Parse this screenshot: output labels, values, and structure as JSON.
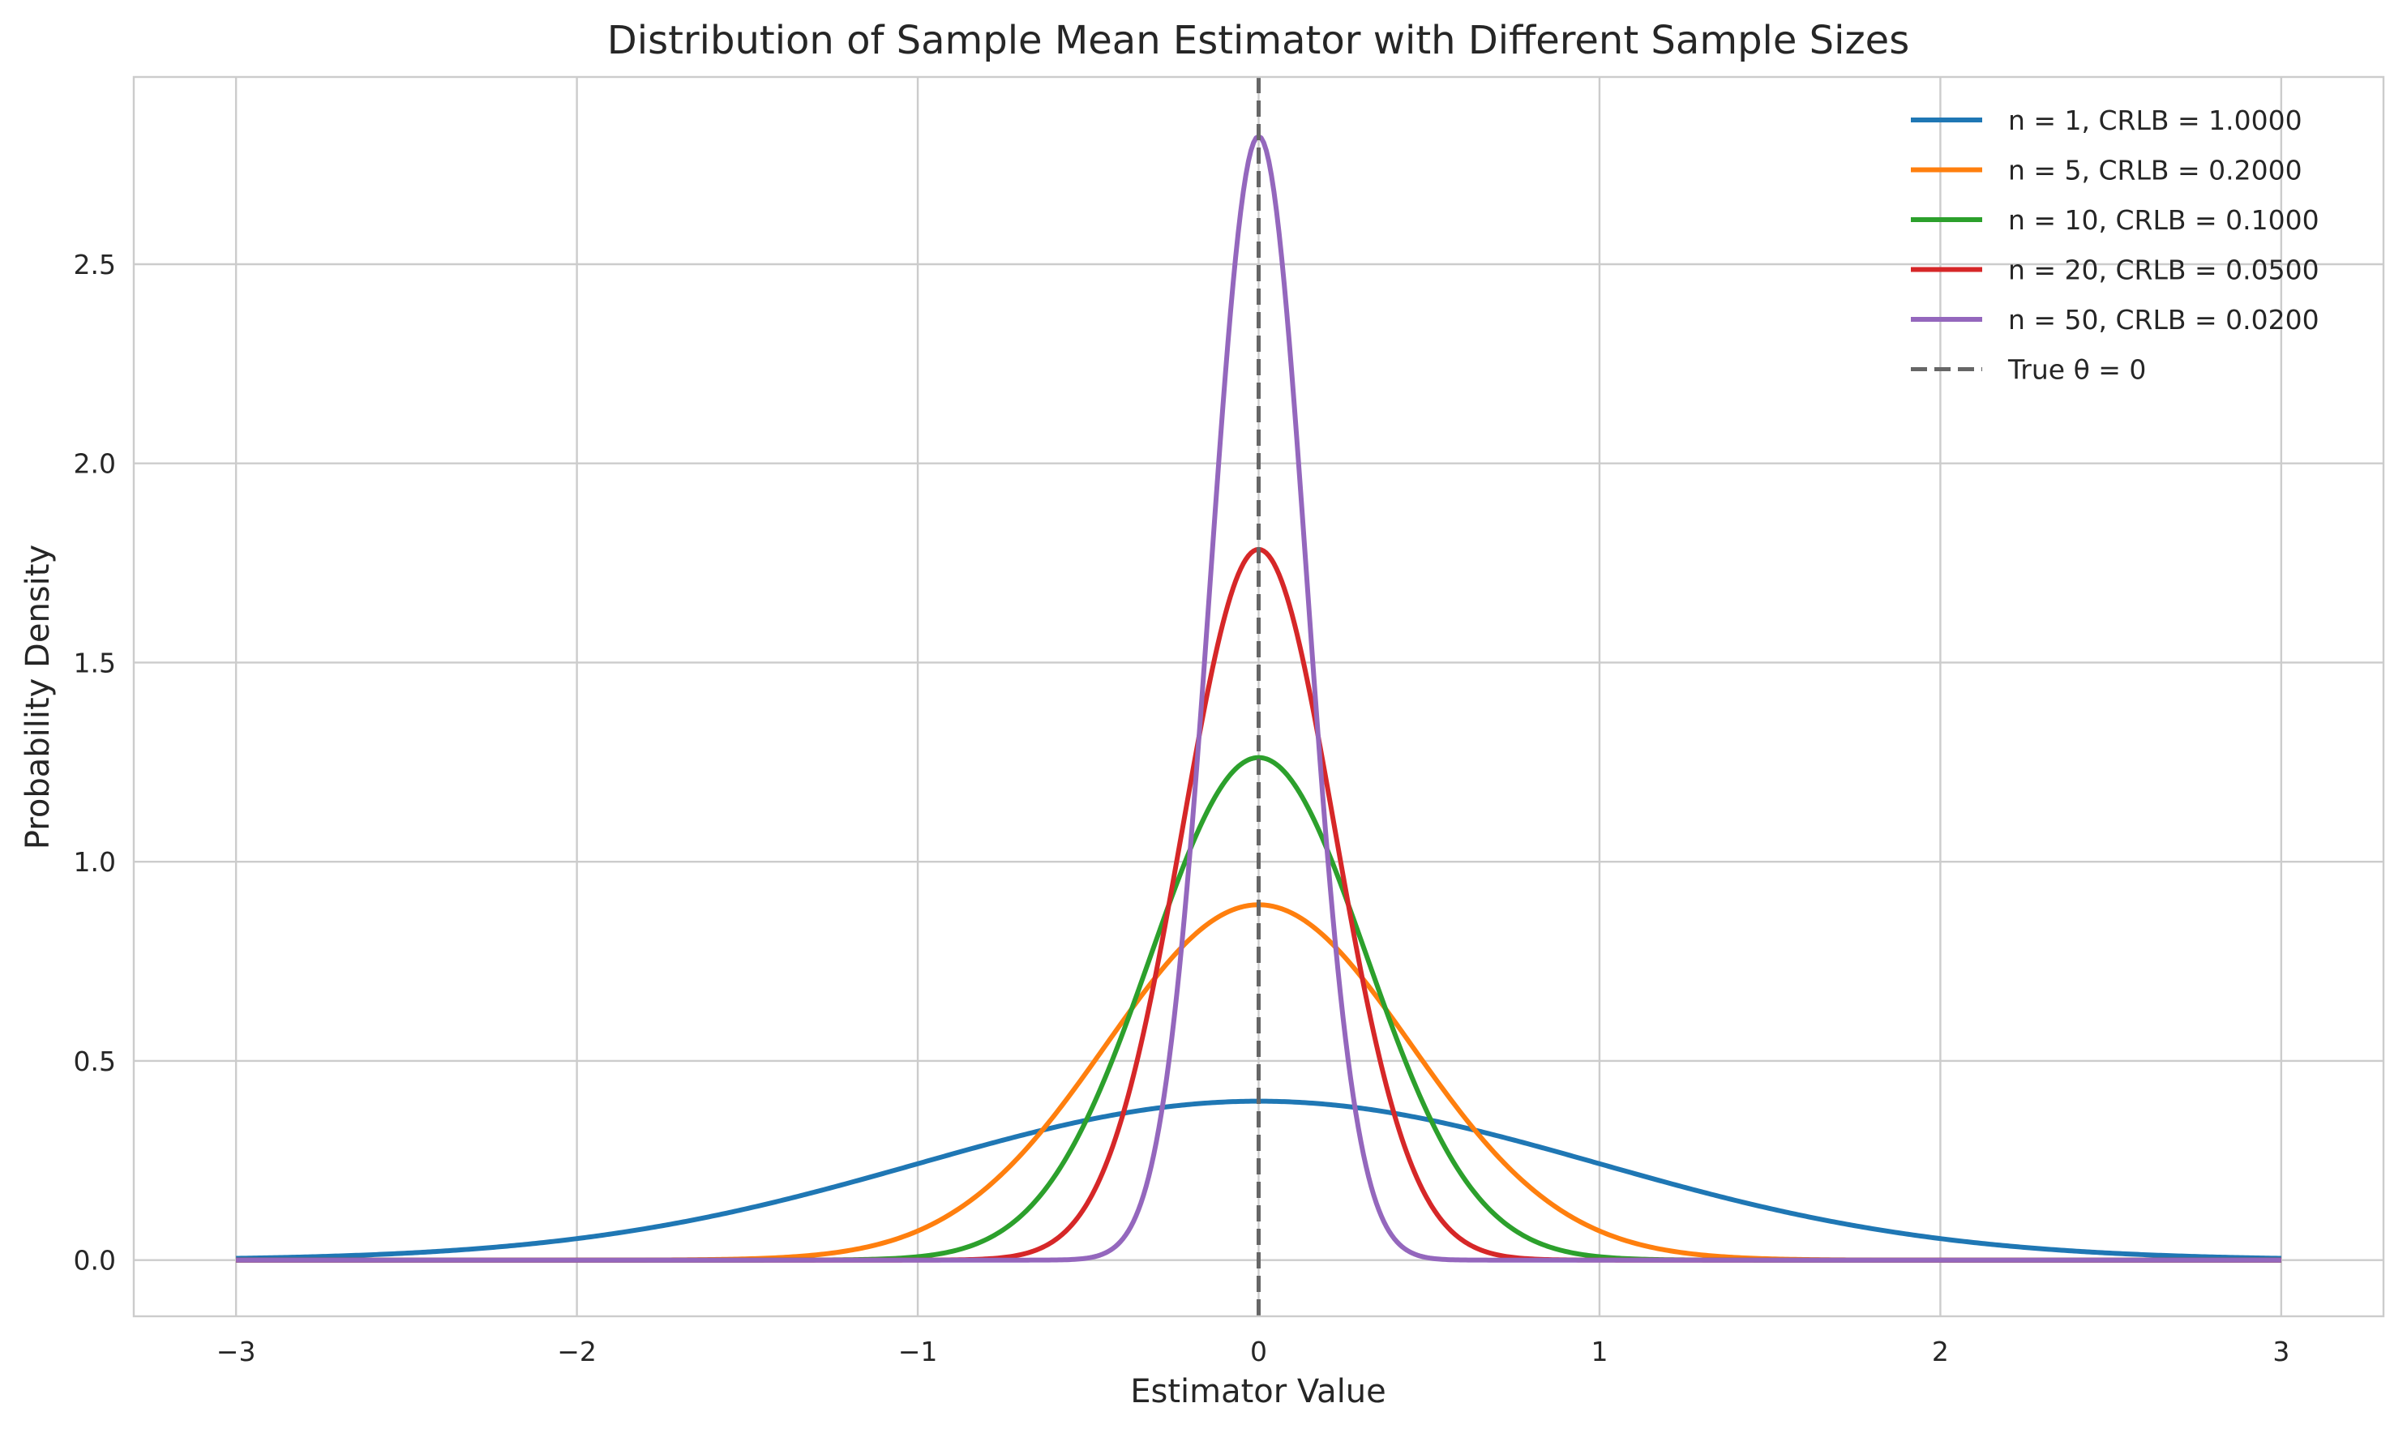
{
  "chart_data": {
    "type": "line",
    "title": "Distribution of Sample Mean Estimator with Different Sample Sizes",
    "xlabel": "Estimator Value",
    "ylabel": "Probability Density",
    "xlim": [
      -3.3,
      3.3
    ],
    "ylim": [
      -0.141,
      2.97
    ],
    "x_ticks": [
      -3,
      -2,
      -1,
      0,
      1,
      2,
      3
    ],
    "x_tick_labels": [
      "−3",
      "−2",
      "−1",
      "0",
      "1",
      "2",
      "3"
    ],
    "y_ticks": [
      0.0,
      0.5,
      1.0,
      1.5,
      2.0,
      2.5
    ],
    "y_tick_labels": [
      "0.0",
      "0.5",
      "1.0",
      "1.5",
      "2.0",
      "2.5"
    ],
    "grid": true,
    "legend_position": "top-right",
    "x_range": [
      -3,
      3
    ],
    "series": [
      {
        "name": "n = 1, CRLB = 1.0000",
        "color": "#1f77b4",
        "n": 1,
        "crlb": 1.0,
        "peak": 0.399
      },
      {
        "name": "n = 5, CRLB = 0.2000",
        "color": "#ff7f0e",
        "n": 5,
        "crlb": 0.2,
        "peak": 0.892
      },
      {
        "name": "n = 10, CRLB = 0.1000",
        "color": "#2ca02c",
        "n": 10,
        "crlb": 0.1,
        "peak": 1.262
      },
      {
        "name": "n = 20, CRLB = 0.0500",
        "color": "#d62728",
        "n": 20,
        "crlb": 0.05,
        "peak": 1.784
      },
      {
        "name": "n = 50, CRLB = 0.0200",
        "color": "#9467bd",
        "n": 50,
        "crlb": 0.02,
        "peak": 2.821
      }
    ],
    "reference_line": {
      "name": "True θ = 0",
      "x": 0,
      "color": "#666666",
      "style": "dashed"
    }
  }
}
